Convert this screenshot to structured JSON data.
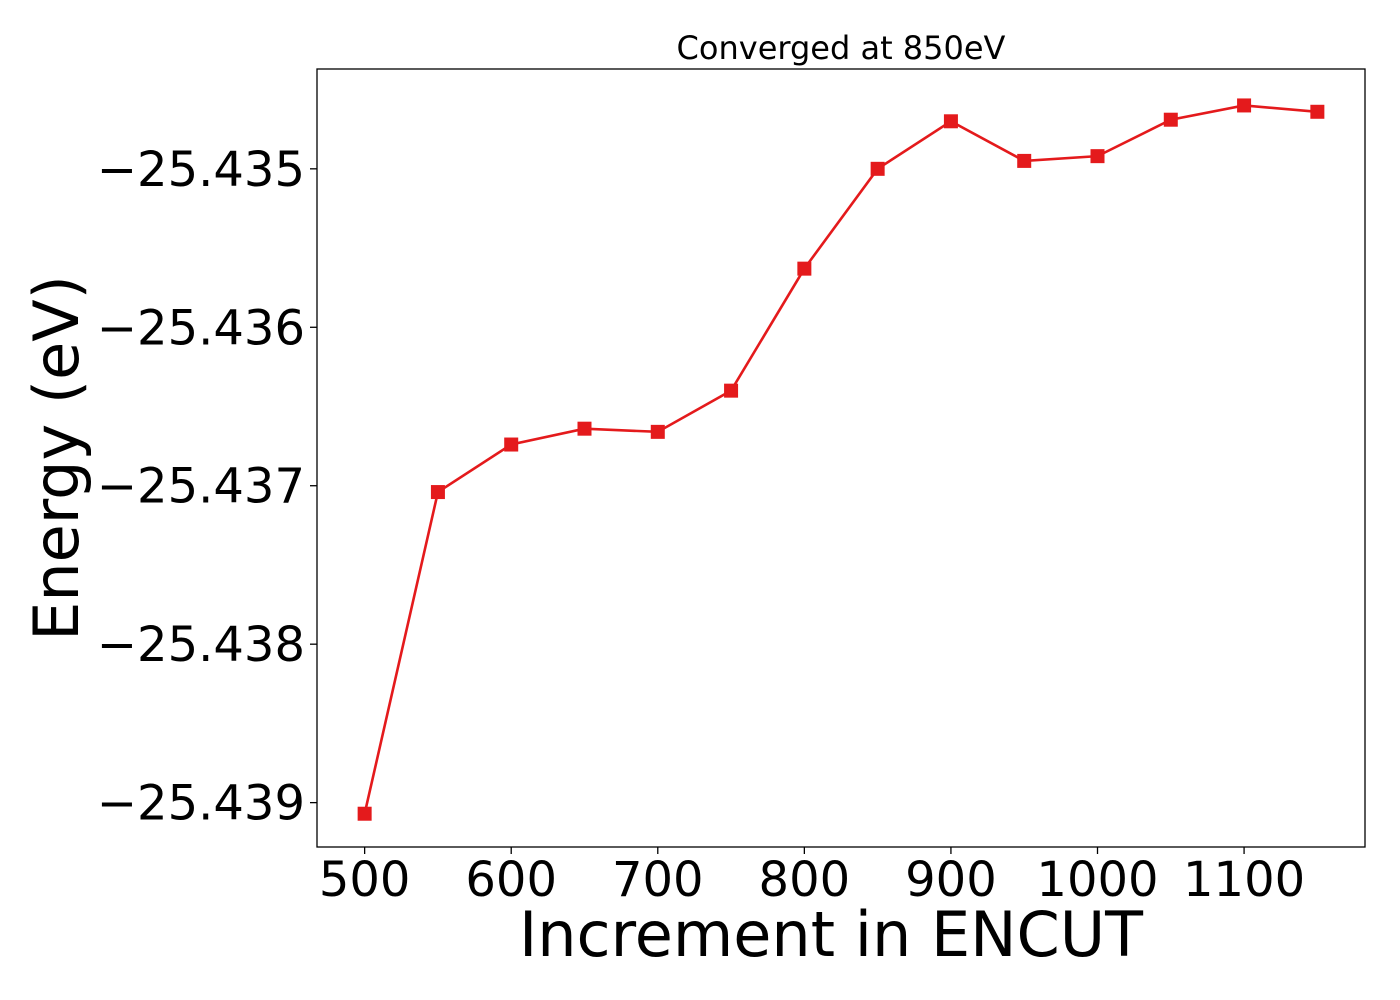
{
  "chart_data": {
    "type": "line",
    "title": "Converged at 850eV",
    "xlabel": "Increment in ENCUT",
    "ylabel": "Energy (eV)",
    "x": [
      500,
      550,
      600,
      650,
      700,
      750,
      800,
      850,
      900,
      950,
      1000,
      1050,
      1100,
      1150
    ],
    "series": [
      {
        "values": [
          -25.43907,
          -25.43704,
          -25.43674,
          -25.43664,
          -25.43666,
          -25.4364,
          -25.43563,
          -25.435,
          -25.4347,
          -25.43495,
          -25.43492,
          -25.43469,
          -25.4346,
          -25.43464
        ],
        "color": "#e41a1c",
        "marker": "square"
      }
    ],
    "xticks": [
      500,
      600,
      700,
      800,
      900,
      1000,
      1100
    ],
    "xtick_labels": [
      "500",
      "600",
      "700",
      "800",
      "900",
      "1000",
      "1100"
    ],
    "yticks": [
      -25.439,
      -25.438,
      -25.437,
      -25.436,
      -25.435
    ],
    "ytick_labels": [
      "−25.439",
      "−25.438",
      "−25.437",
      "−25.436",
      "−25.435"
    ],
    "xlim": [
      467.5,
      1182.5
    ],
    "ylim": [
      -25.43928,
      -25.43437
    ],
    "grid": false,
    "legend": false
  }
}
